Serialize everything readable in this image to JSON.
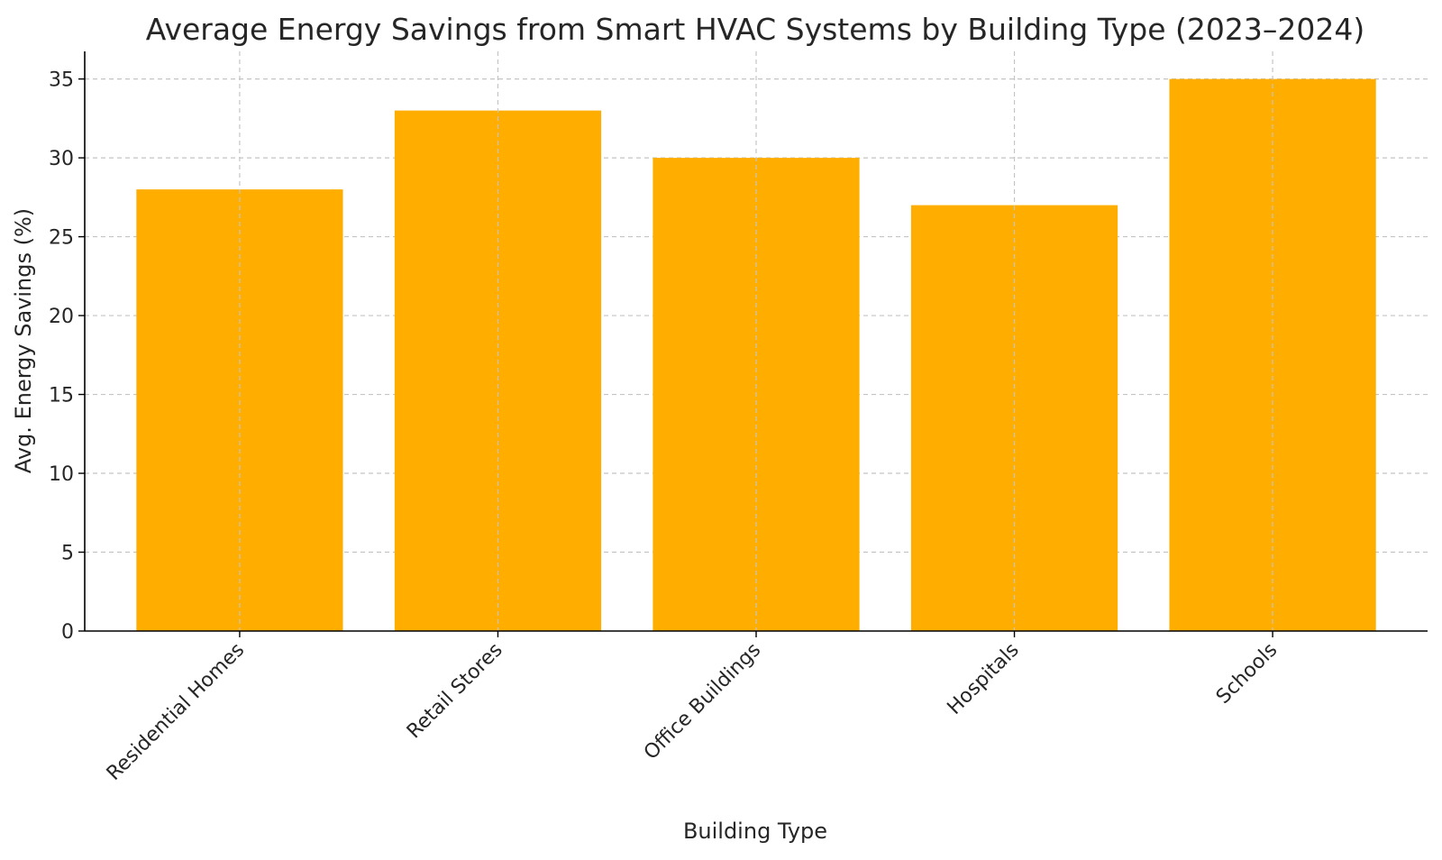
{
  "chart_data": {
    "type": "bar",
    "title": "Average Energy Savings from Smart HVAC Systems by Building Type (2023–2024)",
    "xlabel": "Building Type",
    "ylabel": "Avg. Energy Savings (%)",
    "categories": [
      "Residential Homes",
      "Retail Stores",
      "Office Buildings",
      "Hospitals",
      "Schools"
    ],
    "values": [
      28,
      33,
      30,
      27,
      35
    ],
    "ylim": [
      0,
      36.75
    ],
    "yticks": [
      "0",
      "5",
      "10",
      "15",
      "20",
      "25",
      "30",
      "35"
    ],
    "grid": true,
    "bar_color": "#FFAE00",
    "legend": "none"
  }
}
